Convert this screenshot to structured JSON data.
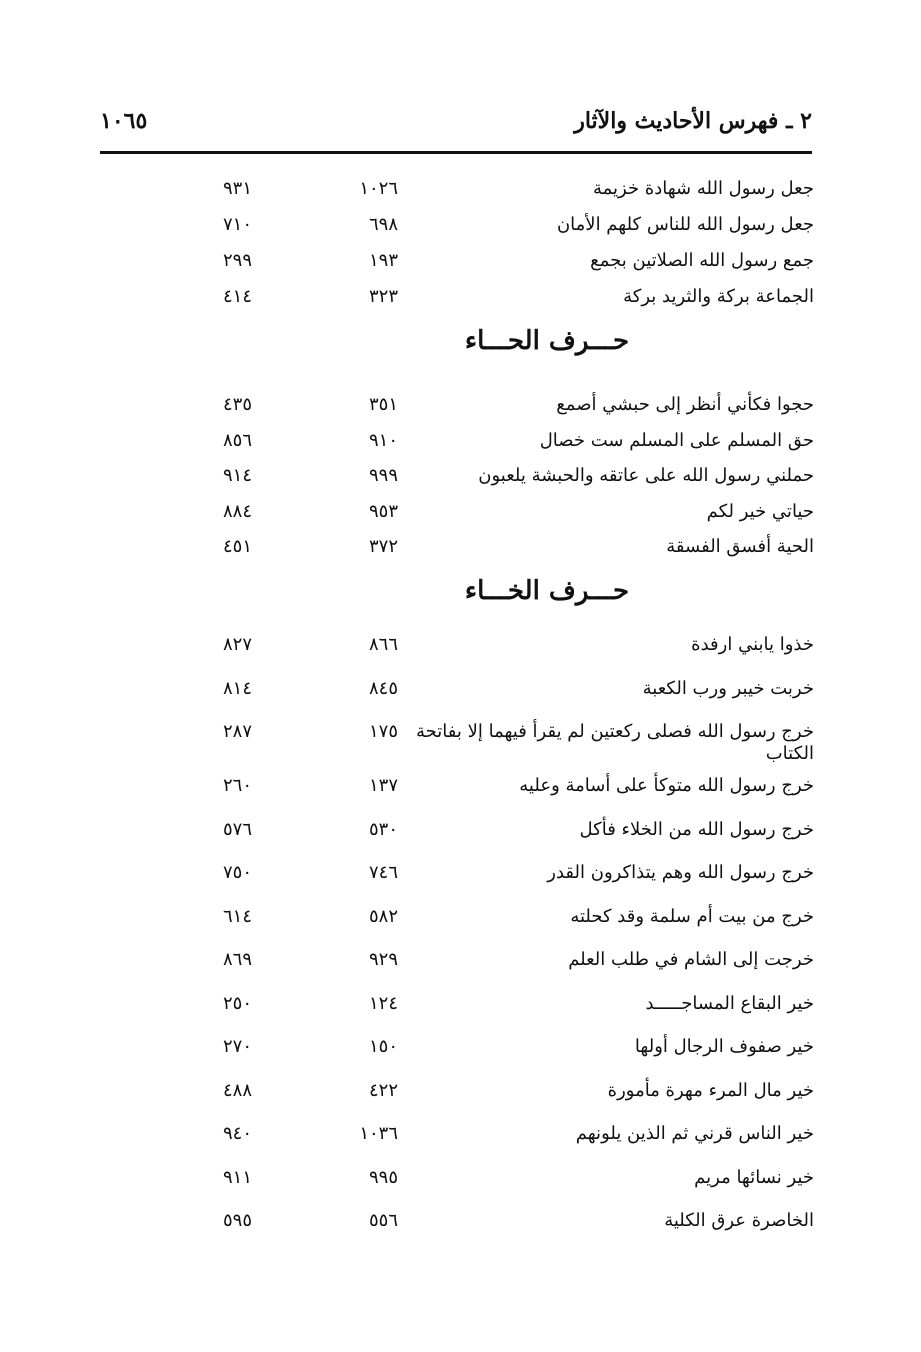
{
  "header": {
    "title": "٢ ـ فهرس الأحاديث والآثار",
    "page_number": "١٠٦٥"
  },
  "groups": [
    {
      "rows": [
        {
          "text": "جعل رسول الله شهادة خزيمة",
          "n1": "١٠٢٦",
          "n2": "٩٣١"
        },
        {
          "text": "جعل رسول الله للناس كلهم الأمان",
          "n1": "٦٩٨",
          "n2": "٧١٠"
        },
        {
          "text": "جمع رسول الله الصلاتين بجمع",
          "n1": "١٩٣",
          "n2": "٢٩٩"
        },
        {
          "text": "الجماعة بركة والثريد بركة",
          "n1": "٣٢٣",
          "n2": "٤١٤"
        }
      ]
    },
    {
      "heading": "حـــرف الحـــاء",
      "rows": [
        {
          "text": "حجوا فكأني أنظر إلى حبشي أصمع",
          "n1": "٣٥١",
          "n2": "٤٣٥"
        },
        {
          "text": "حق المسلم على المسلم ست خصال",
          "n1": "٩١٠",
          "n2": "٨٥٦"
        },
        {
          "text": "حملني رسول الله على عاتقه والحبشة يلعبون",
          "n1": "٩٩٩",
          "n2": "٩١٤"
        },
        {
          "text": "حياتي خير لكم",
          "n1": "٩٥٣",
          "n2": "٨٨٤"
        },
        {
          "text": "الحية أفسق الفسقة",
          "n1": "٣٧٢",
          "n2": "٤٥١"
        }
      ]
    },
    {
      "heading": "حـــرف الخـــاء",
      "rows": [
        {
          "text": "خذوا يابني ارفدة",
          "n1": "٨٦٦",
          "n2": "٨٢٧"
        },
        {
          "text": "خربت خيبر ورب الكعبة",
          "n1": "٨٤٥",
          "n2": "٨١٤"
        },
        {
          "text": "خرج رسول الله فصلى ركعتين لم يقرأ فيهما إلا بفاتحة الكتاب",
          "n1": "١٧٥",
          "n2": "٢٨٧"
        },
        {
          "text": "خرج رسول الله متوكأ على أسامة وعليه",
          "n1": "١٣٧",
          "n2": "٢٦٠"
        },
        {
          "text": "خرج رسول الله من الخلاء فأكل",
          "n1": "٥٣٠",
          "n2": "٥٧٦"
        },
        {
          "text": "خرج رسول الله وهم يتذاكرون القدر",
          "n1": "٧٤٦",
          "n2": "٧٥٠"
        },
        {
          "text": "خرج من بيت أم سلمة وقد كحلته",
          "n1": "٥٨٢",
          "n2": "٦١٤"
        },
        {
          "text": "خرجت إلى الشام في طلب العلم",
          "n1": "٩٢٩",
          "n2": "٨٦٩"
        },
        {
          "text": "خير البقاع المساجـــــد",
          "n1": "١٢٤",
          "n2": "٢٥٠"
        },
        {
          "text": "خير صفوف الرجال أولها",
          "n1": "١٥٠",
          "n2": "٢٧٠"
        },
        {
          "text": "خير مال المرء مهرة مأمورة",
          "n1": "٤٢٢",
          "n2": "٤٨٨"
        },
        {
          "text": "خير الناس قرني ثم الذين يلونهم",
          "n1": "١٠٣٦",
          "n2": "٩٤٠"
        },
        {
          "text": "خير نسائها مريم",
          "n1": "٩٩٥",
          "n2": "٩١١"
        },
        {
          "text": "الخاصرة عرق الكلية",
          "n1": "٥٥٦",
          "n2": "٥٩٥"
        }
      ]
    }
  ]
}
